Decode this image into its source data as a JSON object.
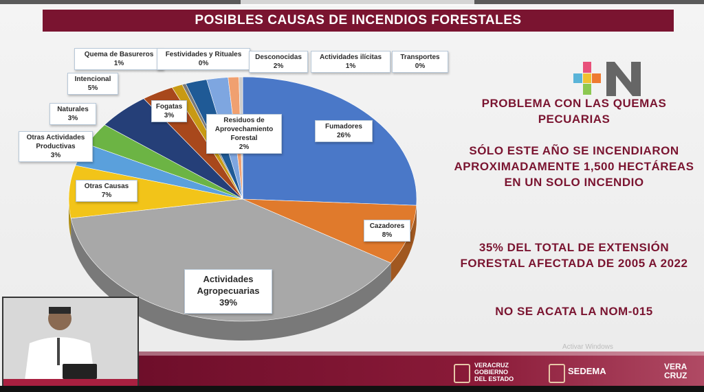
{
  "title": "POSIBLES CAUSAS DE INCENDIOS FORESTALES",
  "chart_data": {
    "type": "pie",
    "title": "POSIBLES CAUSAS DE INCENDIOS FORESTALES",
    "slices": [
      {
        "name": "Fumadores",
        "value": 26,
        "label": "26%",
        "color": "#4a78c8"
      },
      {
        "name": "Cazadores",
        "value": 8,
        "label": "8%",
        "color": "#e07a2c"
      },
      {
        "name": "Actividades Agropecuarias",
        "value": 39,
        "label": "39%",
        "color": "#a8a8a8"
      },
      {
        "name": "Otras Causas",
        "value": 7,
        "label": "7%",
        "color": "#f2c419"
      },
      {
        "name": "Otras Actividades Productivas",
        "value": 3,
        "label": "3%",
        "color": "#5aa0dc"
      },
      {
        "name": "Naturales",
        "value": 3,
        "label": "3%",
        "color": "#6cb444"
      },
      {
        "name": "Intencional",
        "value": 5,
        "label": "5%",
        "color": "#253f78"
      },
      {
        "name": "Fogatas",
        "value": 3,
        "label": "3%",
        "color": "#a8481c"
      },
      {
        "name": "Quema de Basureros",
        "value": 1,
        "label": "1%",
        "color": "#c89a14"
      },
      {
        "name": "Festividades y Rituales",
        "value": 0,
        "label": "0%",
        "color": "#7a7a7a"
      },
      {
        "name": "Residuos de Aprovechamiento Forestal",
        "value": 2,
        "label": "2%",
        "color": "#1f5a96"
      },
      {
        "name": "Desconocidas",
        "value": 2,
        "label": "2%",
        "color": "#7ea6e0"
      },
      {
        "name": "Actividades ilícitas",
        "value": 1,
        "label": "1%",
        "color": "#f0a070"
      },
      {
        "name": "Transportes",
        "value": 0,
        "label": "0%",
        "color": "#cccccc"
      }
    ]
  },
  "labels": {
    "fumadores": {
      "name": "Fumadores",
      "pct": "26%"
    },
    "cazadores": {
      "name": "Cazadores",
      "pct": "8%"
    },
    "agro": {
      "name1": "Actividades",
      "name2": "Agropecuarias",
      "pct": "39%"
    },
    "otras_causas": {
      "name": "Otras Causas",
      "pct": "7%"
    },
    "otras_act": {
      "name1": "Otras Actividades",
      "name2": "Productivas",
      "pct": "3%"
    },
    "naturales": {
      "name": "Naturales",
      "pct": "3%"
    },
    "intencional": {
      "name": "Intencional",
      "pct": "5%"
    },
    "fogatas": {
      "name": "Fogatas",
      "pct": "3%"
    },
    "quema": {
      "name": "Quema de Basureros",
      "pct": "1%"
    },
    "festividades": {
      "name": "Festividades y Rituales",
      "pct": "0%"
    },
    "residuos": {
      "name1": "Residuos de",
      "name2": "Aprovechamiento",
      "name3": "Forestal",
      "pct": "2%"
    },
    "desconocidas": {
      "name": "Desconocidas",
      "pct": "2%"
    },
    "ilicitas": {
      "name": "Actividades ilícitas",
      "pct": "1%"
    },
    "transportes": {
      "name": "Transportes",
      "pct": "0%"
    }
  },
  "right_panel": {
    "p1": "PROBLEMA CON LAS QUEMAS PECUARIAS",
    "p2": "SÓLO ESTE AÑO SE INCENDIARON APROXIMADAMENTE 1,500 HECTÁREAS EN UN SOLO INCENDIO",
    "p3": "35% DEL TOTAL DE EXTENSIÓN FORESTAL AFECTADA  DE 2005 A 2022",
    "p4": "NO SE ACATA LA NOM-015"
  },
  "footer": {
    "veracruz_gob": "VERACRUZ\nGOBIERNO\nDEL ESTADO",
    "sedema": "SEDEMA",
    "veracruz_logo": "VERA\nCRUZ",
    "watermark": "Activar Windows"
  },
  "colors": {
    "brand": "#7a1430",
    "logo_n": "#666666"
  }
}
